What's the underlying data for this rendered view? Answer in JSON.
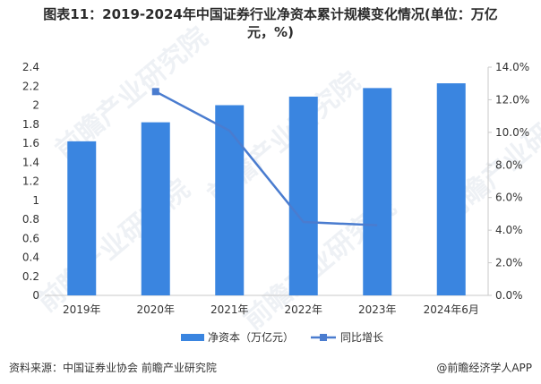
{
  "title": {
    "line1": "图表11：2019-2024年中国证券行业净资本累计规模变化情况(单位：万亿",
    "line2": "元，%)"
  },
  "footer": {
    "source": "资料来源：中国证券业协会 前瞻产业研究院",
    "brand": "@前瞻经济学人APP"
  },
  "watermark": "前瞻产业研究院",
  "colors": {
    "bar": "#3a85e0",
    "line": "#4a7ccf",
    "axis": "#c9c9c9",
    "text": "#333333"
  },
  "chart_data": {
    "type": "bar",
    "categories": [
      "2019年",
      "2020年",
      "2021年",
      "2022年",
      "2023年",
      "2024年6月"
    ],
    "series": [
      {
        "name": "净资本（万亿元）",
        "type": "bar",
        "axis": "left",
        "values": [
          1.62,
          1.82,
          2.0,
          2.09,
          2.18,
          2.23
        ]
      },
      {
        "name": "同比增长",
        "type": "line",
        "axis": "right",
        "values": [
          null,
          12.5,
          10.1,
          4.5,
          4.3,
          null
        ]
      }
    ],
    "y_left": {
      "ylim": [
        0,
        2.4
      ],
      "ticks": [
        "0",
        "0.2",
        "0.4",
        "0.6",
        "0.8",
        "1",
        "1.2",
        "1.4",
        "1.6",
        "1.8",
        "2",
        "2.2",
        "2.4"
      ]
    },
    "y_right": {
      "ylim": [
        0,
        14
      ],
      "ticks": [
        "0.0%",
        "2.0%",
        "4.0%",
        "6.0%",
        "8.0%",
        "10.0%",
        "12.0%",
        "14.0%"
      ]
    },
    "legend": {
      "placement": "bottom"
    }
  }
}
